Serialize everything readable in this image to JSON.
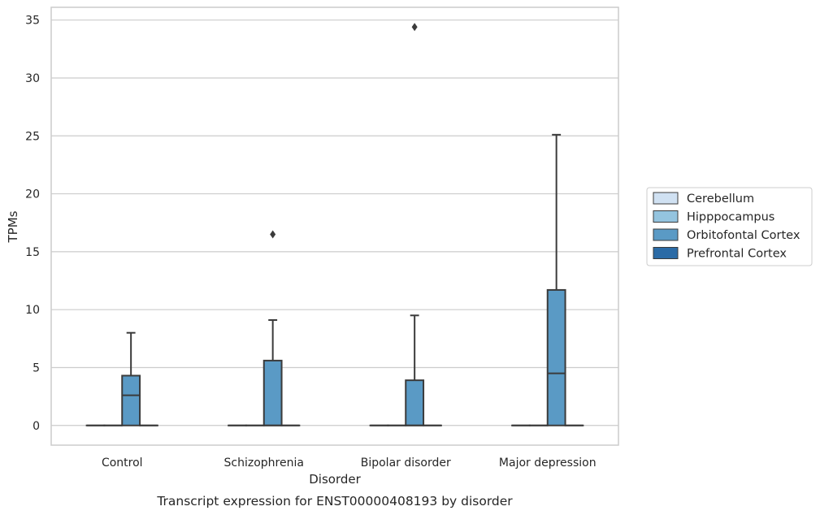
{
  "chart_data": {
    "type": "box",
    "caption": "Transcript expression for ENST00000408193 by disorder",
    "xlabel": "Disorder",
    "ylabel": "TPMs",
    "ylim": [
      -1.7,
      36.1
    ],
    "yticks": [
      0,
      5,
      10,
      15,
      20,
      25,
      30,
      35
    ],
    "grid": true,
    "legend_position": "right",
    "categories": [
      "Control",
      "Schizophrenia",
      "Bipolar disorder",
      "Major depression"
    ],
    "series": [
      {
        "name": "Cerebellum",
        "color": "#d0e1f2",
        "boxes": [
          {
            "min": 0,
            "q1": 0,
            "median": 0,
            "q3": 0,
            "max": 0,
            "outliers": []
          },
          {
            "min": 0,
            "q1": 0,
            "median": 0,
            "q3": 0,
            "max": 0,
            "outliers": []
          },
          {
            "min": 0,
            "q1": 0,
            "median": 0,
            "q3": 0,
            "max": 0,
            "outliers": []
          },
          {
            "min": 0,
            "q1": 0,
            "median": 0,
            "q3": 0,
            "max": 0,
            "outliers": []
          }
        ]
      },
      {
        "name": "Hipppocampus",
        "color": "#94c4df",
        "boxes": [
          {
            "min": 0,
            "q1": 0,
            "median": 0,
            "q3": 0,
            "max": 0,
            "outliers": []
          },
          {
            "min": 0,
            "q1": 0,
            "median": 0,
            "q3": 0,
            "max": 0,
            "outliers": []
          },
          {
            "min": 0,
            "q1": 0,
            "median": 0,
            "q3": 0,
            "max": 0,
            "outliers": []
          },
          {
            "min": 0,
            "q1": 0,
            "median": 0,
            "q3": 0,
            "max": 0,
            "outliers": []
          }
        ]
      },
      {
        "name": "Orbitofontal Cortex",
        "color": "#5a9ac5",
        "boxes": [
          {
            "min": 0,
            "q1": 0,
            "median": 2.6,
            "q3": 4.3,
            "max": 8.0,
            "outliers": []
          },
          {
            "min": 0,
            "q1": 0,
            "median": 0,
            "q3": 5.6,
            "max": 9.1,
            "outliers": [
              16.5
            ]
          },
          {
            "min": 0,
            "q1": 0,
            "median": 0,
            "q3": 3.9,
            "max": 9.5,
            "outliers": [
              34.4
            ]
          },
          {
            "min": 0,
            "q1": 0,
            "median": 4.5,
            "q3": 11.7,
            "max": 25.1,
            "outliers": []
          }
        ]
      },
      {
        "name": "Prefrontal Cortex",
        "color": "#2b6ba6",
        "boxes": [
          {
            "min": 0,
            "q1": 0,
            "median": 0,
            "q3": 0,
            "max": 0,
            "outliers": []
          },
          {
            "min": 0,
            "q1": 0,
            "median": 0,
            "q3": 0,
            "max": 0,
            "outliers": []
          },
          {
            "min": 0,
            "q1": 0,
            "median": 0,
            "q3": 0,
            "max": 0,
            "outliers": []
          },
          {
            "min": 0,
            "q1": 0,
            "median": 0,
            "q3": 0,
            "max": 0,
            "outliers": []
          }
        ]
      }
    ]
  }
}
